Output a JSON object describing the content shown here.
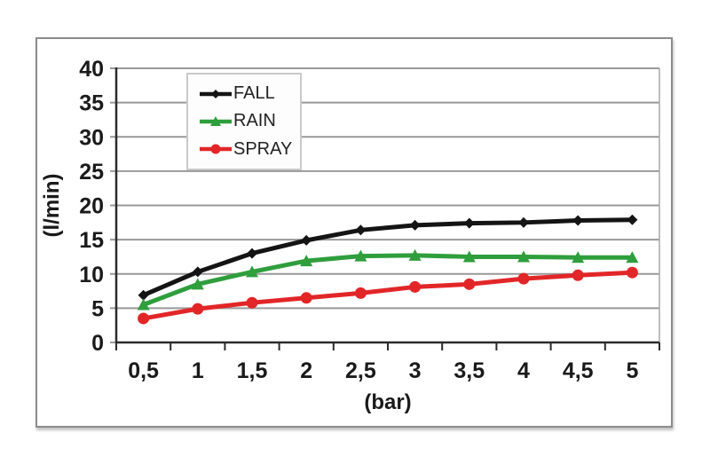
{
  "figure": {
    "background_color": "#ffffff",
    "frame_border_color": "#8c8c8c"
  },
  "chart_data": {
    "type": "line",
    "title": "",
    "xlabel": "(bar)",
    "ylabel": "(l/min)",
    "categories": [
      "0,5",
      "1",
      "1,5",
      "2",
      "2,5",
      "3",
      "3,5",
      "4",
      "4,5",
      "5"
    ],
    "series": [
      {
        "name": "FALL",
        "color": "#141414",
        "marker": "diamond",
        "values": [
          6.9,
          10.3,
          13.0,
          14.9,
          16.4,
          17.1,
          17.4,
          17.5,
          17.8,
          17.9
        ]
      },
      {
        "name": "RAIN",
        "color": "#2f9e3c",
        "marker": "triangle",
        "values": [
          5.5,
          8.5,
          10.3,
          11.9,
          12.6,
          12.7,
          12.5,
          12.5,
          12.4,
          12.4
        ]
      },
      {
        "name": "SPRAY",
        "color": "#e22628",
        "marker": "circle",
        "values": [
          3.5,
          4.9,
          5.8,
          6.5,
          7.2,
          8.1,
          8.5,
          9.3,
          9.8,
          10.2
        ]
      }
    ],
    "y_ticks": [
      0,
      5,
      10,
      15,
      20,
      25,
      30,
      35,
      40
    ],
    "ylim": [
      0,
      40
    ],
    "grid": "horizontal",
    "legend_position": "inside-top-center",
    "gridline_color": "#999999",
    "axis_color": "#2b2b2b",
    "plot_border_color": "#a8a8a8",
    "text_color": "#1a1a1a"
  }
}
